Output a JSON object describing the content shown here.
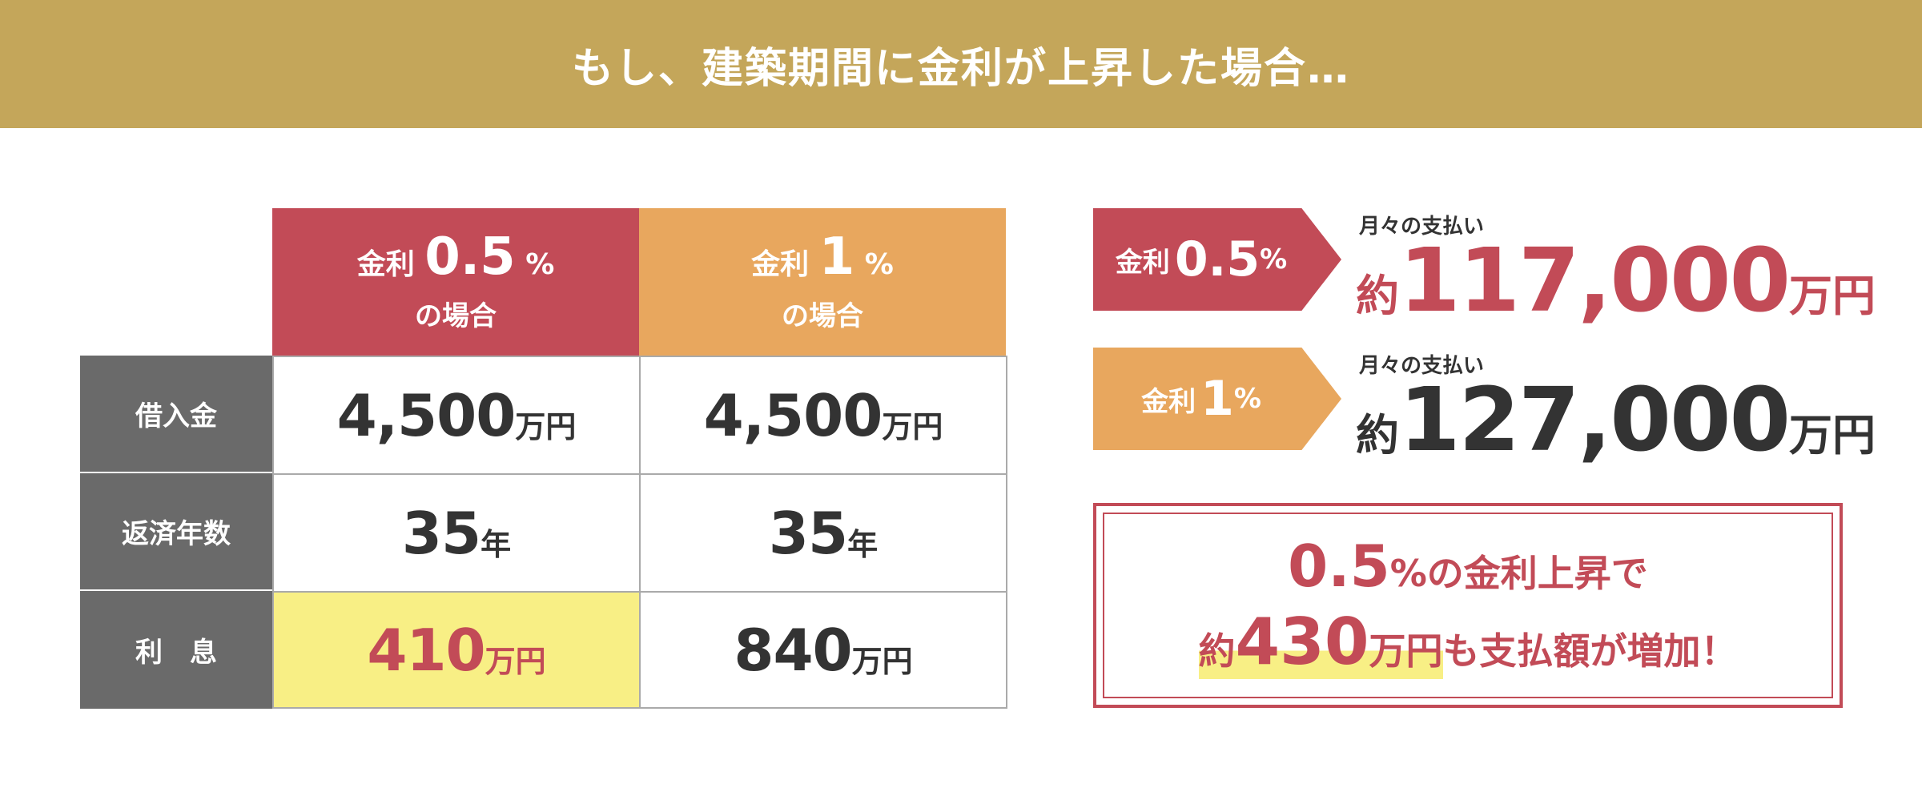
{
  "banner": {
    "title": "もし、建築期間に金利が上昇した場合…",
    "bg_color": "#c4a65a"
  },
  "colors": {
    "red": "#c24b57",
    "orange": "#e8a75e",
    "gray": "#6a6a6a",
    "yellow": "#f8ef85"
  },
  "table": {
    "columns": [
      {
        "prefix": "金利",
        "rate": "0.5",
        "pct": "%",
        "case": "の場合"
      },
      {
        "prefix": "金利",
        "rate": "1",
        "pct": "%",
        "case": "の場合"
      }
    ],
    "rows": [
      {
        "label": "借入金",
        "cells": [
          {
            "num": "4,500",
            "unit": "万円"
          },
          {
            "num": "4,500",
            "unit": "万円"
          }
        ]
      },
      {
        "label": "返済年数",
        "cells": [
          {
            "num": "35",
            "unit": "年"
          },
          {
            "num": "35",
            "unit": "年"
          }
        ]
      },
      {
        "label": "利　息",
        "cells": [
          {
            "num": "410",
            "unit": "万円"
          },
          {
            "num": "840",
            "unit": "万円"
          }
        ]
      }
    ]
  },
  "payments": [
    {
      "prefix": "金利",
      "rate": "0.5",
      "pct": "%",
      "label": "月々の支払い",
      "pre": "約",
      "amount": "117,000",
      "unit": "万円"
    },
    {
      "prefix": "金利",
      "rate": "1",
      "pct": "%",
      "label": "月々の支払い",
      "pre": "約",
      "amount": "127,000",
      "unit": "万円"
    }
  ],
  "summary": {
    "line1_big": "0.5",
    "line1_rest": "%の金利上昇で",
    "line2_pre": "約",
    "line2_big": "430",
    "line2_unit": "万円",
    "line2_rest": "も支払額が増加！"
  }
}
